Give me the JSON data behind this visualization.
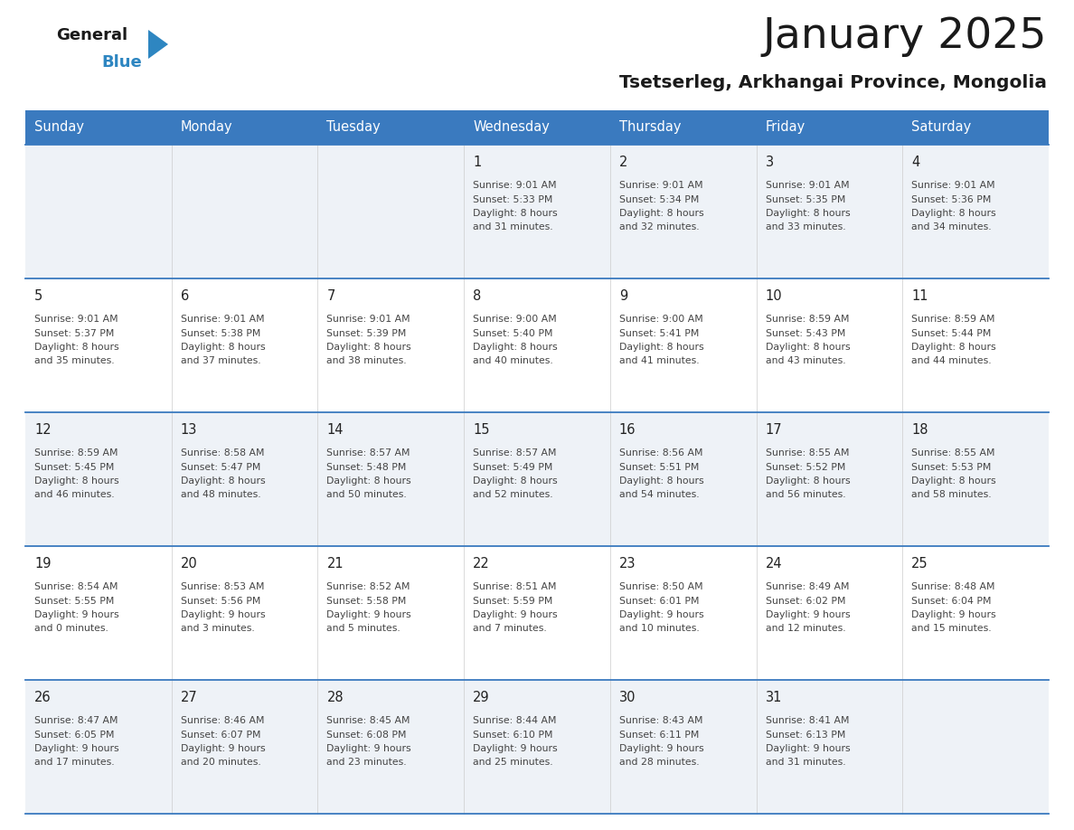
{
  "title": "January 2025",
  "subtitle": "Tsetserleg, Arkhangai Province, Mongolia",
  "days_of_week": [
    "Sunday",
    "Monday",
    "Tuesday",
    "Wednesday",
    "Thursday",
    "Friday",
    "Saturday"
  ],
  "header_bg": "#3a7abf",
  "header_text": "#ffffff",
  "cell_bg_light": "#eef2f7",
  "cell_bg_white": "#ffffff",
  "divider_color": "#3a7abf",
  "text_color": "#444444",
  "day_num_color": "#222222",
  "calendar": [
    [
      null,
      null,
      null,
      {
        "day": 1,
        "sunrise": "9:01 AM",
        "sunset": "5:33 PM",
        "dl1": "Daylight: 8 hours",
        "dl2": "and 31 minutes."
      },
      {
        "day": 2,
        "sunrise": "9:01 AM",
        "sunset": "5:34 PM",
        "dl1": "Daylight: 8 hours",
        "dl2": "and 32 minutes."
      },
      {
        "day": 3,
        "sunrise": "9:01 AM",
        "sunset": "5:35 PM",
        "dl1": "Daylight: 8 hours",
        "dl2": "and 33 minutes."
      },
      {
        "day": 4,
        "sunrise": "9:01 AM",
        "sunset": "5:36 PM",
        "dl1": "Daylight: 8 hours",
        "dl2": "and 34 minutes."
      }
    ],
    [
      {
        "day": 5,
        "sunrise": "9:01 AM",
        "sunset": "5:37 PM",
        "dl1": "Daylight: 8 hours",
        "dl2": "and 35 minutes."
      },
      {
        "day": 6,
        "sunrise": "9:01 AM",
        "sunset": "5:38 PM",
        "dl1": "Daylight: 8 hours",
        "dl2": "and 37 minutes."
      },
      {
        "day": 7,
        "sunrise": "9:01 AM",
        "sunset": "5:39 PM",
        "dl1": "Daylight: 8 hours",
        "dl2": "and 38 minutes."
      },
      {
        "day": 8,
        "sunrise": "9:00 AM",
        "sunset": "5:40 PM",
        "dl1": "Daylight: 8 hours",
        "dl2": "and 40 minutes."
      },
      {
        "day": 9,
        "sunrise": "9:00 AM",
        "sunset": "5:41 PM",
        "dl1": "Daylight: 8 hours",
        "dl2": "and 41 minutes."
      },
      {
        "day": 10,
        "sunrise": "8:59 AM",
        "sunset": "5:43 PM",
        "dl1": "Daylight: 8 hours",
        "dl2": "and 43 minutes."
      },
      {
        "day": 11,
        "sunrise": "8:59 AM",
        "sunset": "5:44 PM",
        "dl1": "Daylight: 8 hours",
        "dl2": "and 44 minutes."
      }
    ],
    [
      {
        "day": 12,
        "sunrise": "8:59 AM",
        "sunset": "5:45 PM",
        "dl1": "Daylight: 8 hours",
        "dl2": "and 46 minutes."
      },
      {
        "day": 13,
        "sunrise": "8:58 AM",
        "sunset": "5:47 PM",
        "dl1": "Daylight: 8 hours",
        "dl2": "and 48 minutes."
      },
      {
        "day": 14,
        "sunrise": "8:57 AM",
        "sunset": "5:48 PM",
        "dl1": "Daylight: 8 hours",
        "dl2": "and 50 minutes."
      },
      {
        "day": 15,
        "sunrise": "8:57 AM",
        "sunset": "5:49 PM",
        "dl1": "Daylight: 8 hours",
        "dl2": "and 52 minutes."
      },
      {
        "day": 16,
        "sunrise": "8:56 AM",
        "sunset": "5:51 PM",
        "dl1": "Daylight: 8 hours",
        "dl2": "and 54 minutes."
      },
      {
        "day": 17,
        "sunrise": "8:55 AM",
        "sunset": "5:52 PM",
        "dl1": "Daylight: 8 hours",
        "dl2": "and 56 minutes."
      },
      {
        "day": 18,
        "sunrise": "8:55 AM",
        "sunset": "5:53 PM",
        "dl1": "Daylight: 8 hours",
        "dl2": "and 58 minutes."
      }
    ],
    [
      {
        "day": 19,
        "sunrise": "8:54 AM",
        "sunset": "5:55 PM",
        "dl1": "Daylight: 9 hours",
        "dl2": "and 0 minutes."
      },
      {
        "day": 20,
        "sunrise": "8:53 AM",
        "sunset": "5:56 PM",
        "dl1": "Daylight: 9 hours",
        "dl2": "and 3 minutes."
      },
      {
        "day": 21,
        "sunrise": "8:52 AM",
        "sunset": "5:58 PM",
        "dl1": "Daylight: 9 hours",
        "dl2": "and 5 minutes."
      },
      {
        "day": 22,
        "sunrise": "8:51 AM",
        "sunset": "5:59 PM",
        "dl1": "Daylight: 9 hours",
        "dl2": "and 7 minutes."
      },
      {
        "day": 23,
        "sunrise": "8:50 AM",
        "sunset": "6:01 PM",
        "dl1": "Daylight: 9 hours",
        "dl2": "and 10 minutes."
      },
      {
        "day": 24,
        "sunrise": "8:49 AM",
        "sunset": "6:02 PM",
        "dl1": "Daylight: 9 hours",
        "dl2": "and 12 minutes."
      },
      {
        "day": 25,
        "sunrise": "8:48 AM",
        "sunset": "6:04 PM",
        "dl1": "Daylight: 9 hours",
        "dl2": "and 15 minutes."
      }
    ],
    [
      {
        "day": 26,
        "sunrise": "8:47 AM",
        "sunset": "6:05 PM",
        "dl1": "Daylight: 9 hours",
        "dl2": "and 17 minutes."
      },
      {
        "day": 27,
        "sunrise": "8:46 AM",
        "sunset": "6:07 PM",
        "dl1": "Daylight: 9 hours",
        "dl2": "and 20 minutes."
      },
      {
        "day": 28,
        "sunrise": "8:45 AM",
        "sunset": "6:08 PM",
        "dl1": "Daylight: 9 hours",
        "dl2": "and 23 minutes."
      },
      {
        "day": 29,
        "sunrise": "8:44 AM",
        "sunset": "6:10 PM",
        "dl1": "Daylight: 9 hours",
        "dl2": "and 25 minutes."
      },
      {
        "day": 30,
        "sunrise": "8:43 AM",
        "sunset": "6:11 PM",
        "dl1": "Daylight: 9 hours",
        "dl2": "and 28 minutes."
      },
      {
        "day": 31,
        "sunrise": "8:41 AM",
        "sunset": "6:13 PM",
        "dl1": "Daylight: 9 hours",
        "dl2": "and 31 minutes."
      },
      null
    ]
  ]
}
